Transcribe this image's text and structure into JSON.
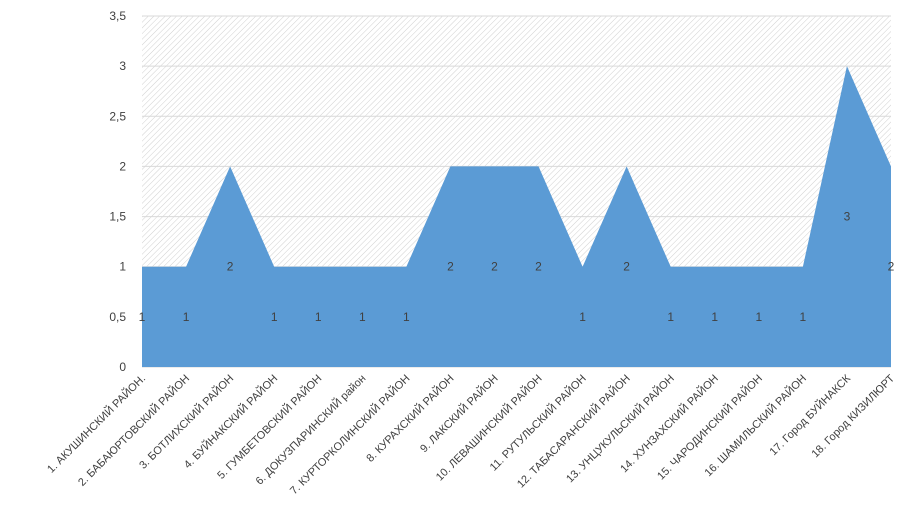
{
  "colors": {
    "area": "#5b9bd5",
    "grid": "#d9d9d9",
    "hatch": "#d0d0d0",
    "text": "#404040",
    "data_label": "#404040"
  },
  "chart_data": {
    "type": "area",
    "title": "",
    "xlabel": "",
    "ylabel": "",
    "ylim": [
      0,
      3.5
    ],
    "yticks": [
      "0",
      "0,5",
      "1",
      "1,5",
      "2",
      "2,5",
      "3",
      "3,5"
    ],
    "grid": true,
    "legend": "none",
    "categories": [
      "1. АКУШИНСКИЙ РАЙОН.",
      "2. БАБАЮРТОВСКИЙ РАЙОН",
      "3. БОТЛИХСКИЙ РАЙОН",
      "4. БУЙНАКСКИЙ  РАЙОН",
      "5. ГУМБЕТОВСКИЙ  РАЙОН",
      "6. ДОКУЗПАРИНСКИЙ район",
      "7. КУРТОРКОЛИНСКИЙ РАЙОН",
      "8. КУРАХСКИЙ РАЙОН",
      "9. ЛАКСКИЙ РАЙОН",
      "10. ЛЕВАШИНСКИЙ РАЙОН",
      "11. РУТУЛЬСКИЙ РАЙОН",
      "12. ТАБАСАРАНСКИЙ РАЙОН",
      "13. УНЦУКУЛЬСКИЙ РАЙОН",
      "14. ХУНЗАХСКИЙ РАЙОН",
      "15. ЧАРОДИНСКИЙ  РАЙОН",
      "16. ШАМИЛЬСКИЙ РАЙОН",
      "17. Город БУЙНАКСК",
      "18. Город КИЗИЛЮРТ"
    ],
    "values": [
      1,
      1,
      2,
      1,
      1,
      1,
      1,
      2,
      2,
      2,
      1,
      2,
      1,
      1,
      1,
      1,
      3,
      2
    ],
    "data_labels": [
      "1",
      "1",
      "2",
      "1",
      "1",
      "1",
      "1",
      "2",
      "2",
      "2",
      "1",
      "2",
      "1",
      "1",
      "1",
      "1",
      "3",
      "2"
    ]
  }
}
